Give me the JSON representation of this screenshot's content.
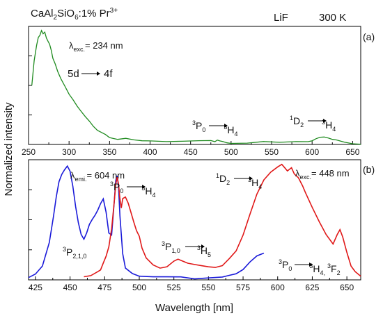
{
  "header": {
    "compound_base": "CaAl",
    "compound_sub2": "2",
    "compound_mid": "SiO",
    "compound_sub6": "6",
    "compound_rest": ":1% Pr",
    "compound_sup": "3+",
    "crystal": "LiF",
    "temperature": "300 K"
  },
  "colors": {
    "panel_a": "#1e8a1e",
    "panel_b_excitation": "#1a1ad9",
    "panel_b_emission": "#e01818"
  },
  "chart_data": [
    {
      "type": "line",
      "panel_label": "(a)",
      "xlim": [
        250,
        660
      ],
      "ylim": [
        0,
        1.0
      ],
      "xticks": [
        250,
        300,
        350,
        400,
        450,
        500,
        550,
        600,
        650
      ],
      "xlabel": "",
      "ylabel": "Normalized intensity",
      "grid": false,
      "annotations": {
        "lambda_prefix": "λ",
        "lambda_sub": "exc.",
        "lambda_value": "= 234 nm",
        "trans1_from": "5d",
        "trans1_to": "4f",
        "trans2_from_sup": "3",
        "trans2_from": "P",
        "trans2_from_sub": "0",
        "trans2_to_sup": "3",
        "trans2_to": "H",
        "trans2_to_sub": "4",
        "trans3_from_sup": "1",
        "trans3_from": "D",
        "trans3_from_sub": "2",
        "trans3_to_sup": "3",
        "trans3_to": "H",
        "trans3_to_sub": "4"
      },
      "series": [
        {
          "x": [
            254,
            257,
            260,
            262,
            264,
            266,
            268,
            270,
            272,
            274,
            276,
            278,
            280,
            283,
            286,
            290,
            295,
            300,
            305,
            310,
            315,
            320,
            325,
            330,
            335,
            340,
            345,
            350,
            355,
            360,
            370,
            380,
            390,
            400,
            420,
            440,
            460,
            475,
            480,
            483,
            486,
            490,
            495,
            500,
            520,
            540,
            560,
            580,
            595,
            600,
            605,
            610,
            615,
            620,
            625,
            630,
            640,
            650,
            660
          ],
          "y": [
            0.5,
            0.7,
            0.84,
            0.9,
            0.92,
            0.96,
            0.93,
            0.95,
            0.91,
            0.88,
            0.85,
            0.8,
            0.74,
            0.68,
            0.62,
            0.55,
            0.48,
            0.42,
            0.37,
            0.32,
            0.27,
            0.23,
            0.19,
            0.16,
            0.13,
            0.11,
            0.09,
            0.07,
            0.06,
            0.05,
            0.04,
            0.03,
            0.028,
            0.025,
            0.022,
            0.02,
            0.02,
            0.022,
            0.03,
            0.04,
            0.035,
            0.025,
            0.02,
            0.018,
            0.015,
            0.015,
            0.015,
            0.018,
            0.022,
            0.03,
            0.045,
            0.06,
            0.065,
            0.06,
            0.05,
            0.04,
            0.025,
            0.015,
            0.01
          ]
        }
      ]
    },
    {
      "type": "line",
      "panel_label": "(b)",
      "xlim": [
        420,
        660
      ],
      "ylim": [
        0,
        1.05
      ],
      "xticks": [
        425,
        450,
        475,
        500,
        525,
        550,
        575,
        600,
        625,
        650
      ],
      "xlabel": "Wavelength [nm]",
      "ylabel": "Normalized intensity",
      "grid": false,
      "annotations": {
        "emi_prefix": "λ",
        "emi_sub": "emi.",
        "emi_value": "= 604 nm",
        "exc_prefix": "λ",
        "exc_sub": "exc.",
        "exc_value": "= 448 nm",
        "t_p0h4_a": "3",
        "t_p0h4_b": "P",
        "t_p0h4_c": "0",
        "t_p0h4_d": "3",
        "t_p0h4_e": "H",
        "t_p0h4_f": "4",
        "t_d2h4_a": "1",
        "t_d2h4_b": "D",
        "t_d2h4_c": "2",
        "t_d2h4_d": "3",
        "t_d2h4_e": "H",
        "t_d2h4_f": "4",
        "t_p210_a": "3",
        "t_p210_b": "P",
        "t_p210_c": "2,1,0",
        "t_p10h5_a": "3",
        "t_p10h5_b": "P",
        "t_p10h5_c": "1,0",
        "t_p10h5_d": "3",
        "t_p10h5_e": "H",
        "t_p10h5_f": "5",
        "t_p0h4f2_a": "3",
        "t_p0h4f2_b": "P",
        "t_p0h4f2_c": "0",
        "t_p0h4f2_d": "3",
        "t_p0h4f2_e": "H",
        "t_p0h4f2_f": "4,",
        "t_p0h4f2_g": "3",
        "t_p0h4f2_h": "F",
        "t_p0h4f2_i": "2"
      },
      "series": [
        {
          "x": [
            420,
            425,
            430,
            435,
            438,
            440,
            442,
            444,
            446,
            448,
            450,
            452,
            454,
            456,
            458,
            460,
            462,
            464,
            466,
            468,
            470,
            472,
            474,
            476,
            478,
            480,
            482,
            483,
            484,
            485,
            486,
            488,
            490,
            495,
            500,
            510,
            520,
            530,
            540,
            550,
            560,
            565,
            570,
            575,
            580,
            585,
            590
          ],
          "y": [
            0.02,
            0.04,
            0.12,
            0.32,
            0.55,
            0.72,
            0.85,
            0.92,
            0.97,
            1.0,
            0.95,
            0.82,
            0.65,
            0.5,
            0.4,
            0.35,
            0.4,
            0.48,
            0.52,
            0.56,
            0.6,
            0.66,
            0.7,
            0.6,
            0.42,
            0.4,
            0.7,
            0.88,
            0.92,
            0.82,
            0.55,
            0.22,
            0.1,
            0.05,
            0.03,
            0.02,
            0.015,
            0.015,
            0.015,
            0.02,
            0.03,
            0.04,
            0.06,
            0.1,
            0.16,
            0.2,
            0.23
          ]
        },
        {
          "x": [
            460,
            465,
            470,
            472,
            474,
            476,
            478,
            480,
            482,
            483,
            484,
            485,
            486,
            487,
            488,
            490,
            492,
            494,
            496,
            498,
            500,
            502,
            505,
            510,
            515,
            520,
            525,
            528,
            530,
            535,
            540,
            545,
            550,
            555,
            560,
            565,
            570,
            575,
            580,
            585,
            590,
            595,
            600,
            603,
            605,
            607,
            610,
            612,
            615,
            618,
            620,
            625,
            630,
            635,
            640,
            643,
            645,
            647,
            650,
            653,
            656,
            660
          ],
          "y": [
            0.02,
            0.03,
            0.06,
            0.08,
            0.14,
            0.2,
            0.3,
            0.45,
            0.7,
            0.84,
            0.9,
            0.85,
            0.72,
            0.62,
            0.7,
            0.72,
            0.66,
            0.58,
            0.5,
            0.42,
            0.38,
            0.28,
            0.2,
            0.14,
            0.11,
            0.12,
            0.17,
            0.19,
            0.17,
            0.14,
            0.13,
            0.12,
            0.11,
            0.1,
            0.12,
            0.18,
            0.26,
            0.4,
            0.58,
            0.76,
            0.88,
            0.95,
            0.99,
            1.0,
            0.98,
            0.95,
            0.97,
            0.92,
            0.88,
            0.82,
            0.76,
            0.64,
            0.52,
            0.4,
            0.32,
            0.4,
            0.45,
            0.38,
            0.24,
            0.12,
            0.07,
            0.03
          ]
        }
      ]
    }
  ]
}
